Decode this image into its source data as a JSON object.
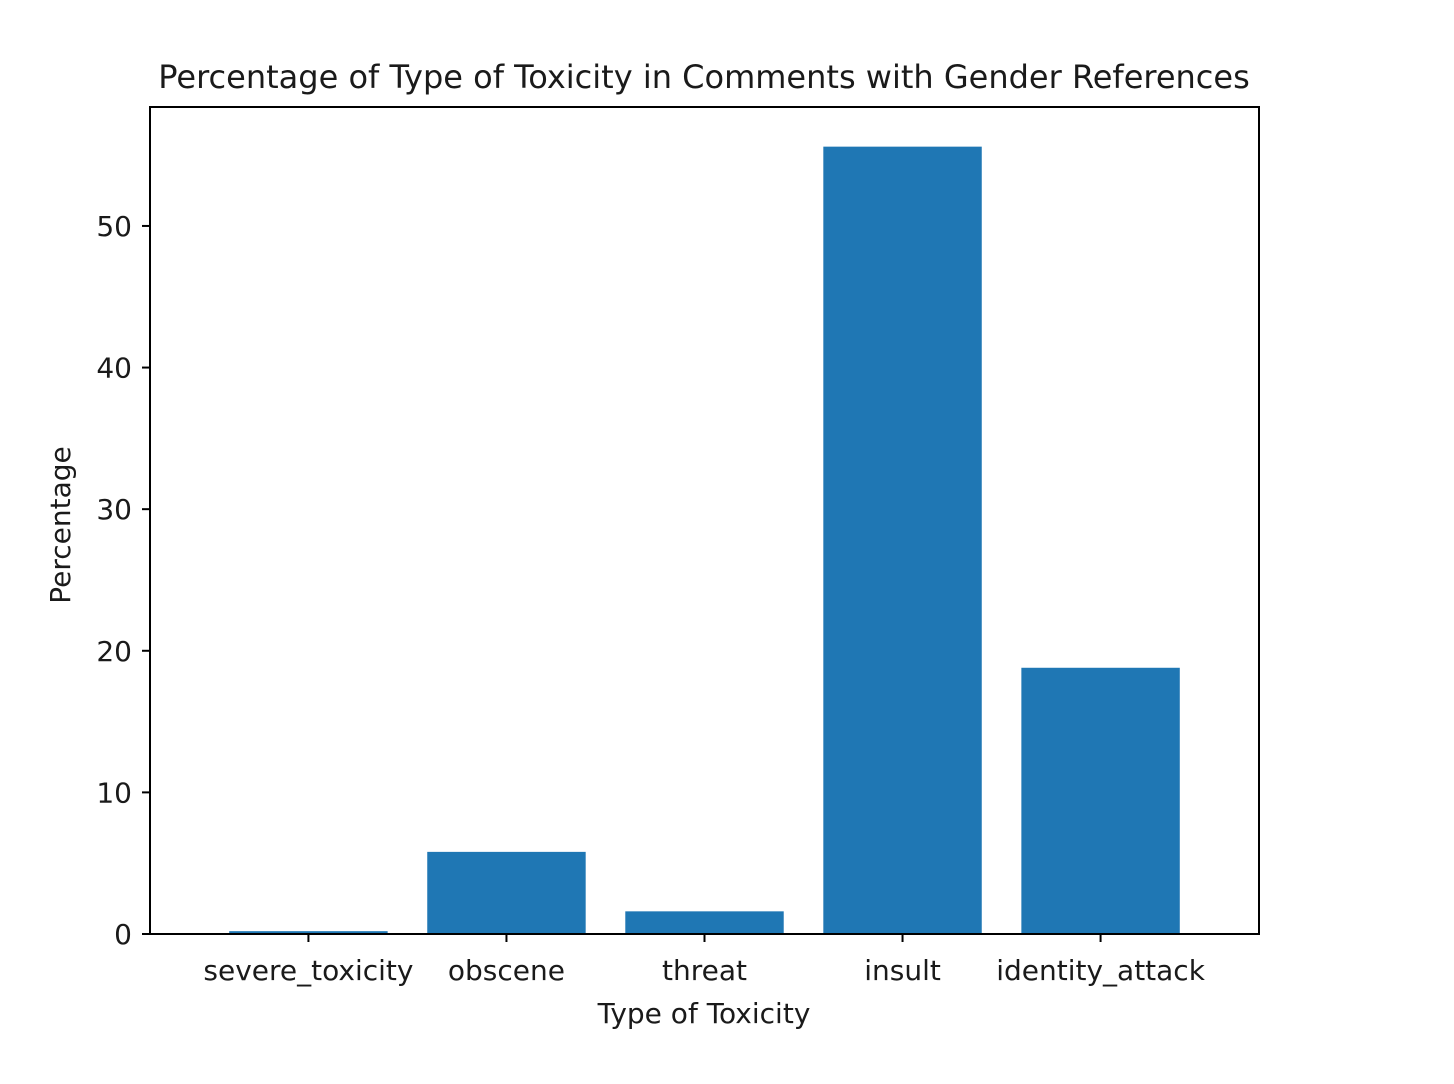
{
  "chart_data": {
    "type": "bar",
    "title": "Percentage of Type of Toxicity in Comments with Gender References",
    "xlabel": "Type of Toxicity",
    "ylabel": "Percentage",
    "categories": [
      "severe_toxicity",
      "obscene",
      "threat",
      "insult",
      "identity_attack"
    ],
    "values": [
      0.2,
      5.8,
      1.6,
      55.6,
      18.8
    ],
    "ylim": [
      0,
      58.4
    ],
    "yticks": [
      0,
      10,
      20,
      30,
      40,
      50
    ],
    "grid": false,
    "legend": "none",
    "bar_color": "#1f77b4"
  }
}
